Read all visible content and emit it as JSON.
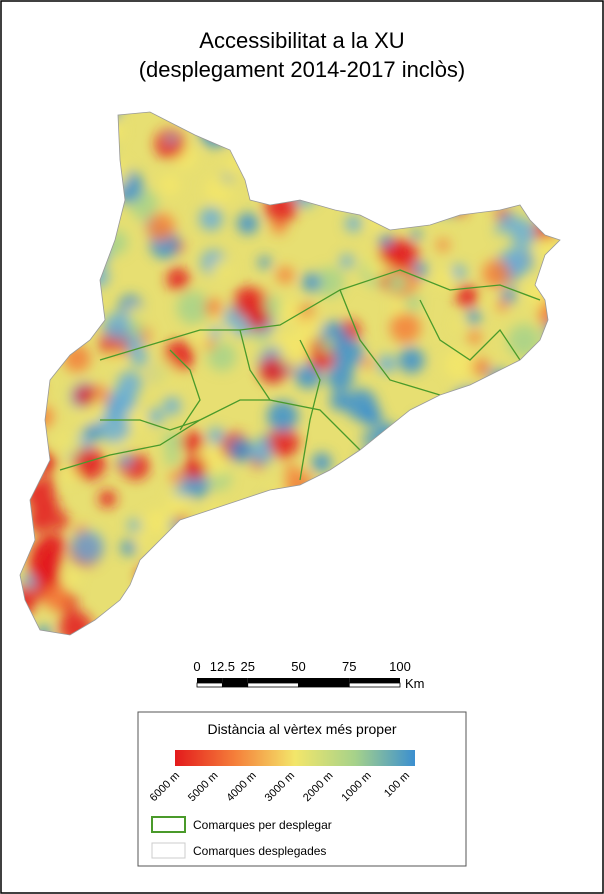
{
  "header": {
    "title_line1": "Accessibilitat a la XU",
    "title_line2": "(desplegament 2014-2017 inclòs)"
  },
  "scale_bar": {
    "ticks": [
      0,
      12.5,
      25,
      50,
      75,
      100
    ],
    "unit": "Km"
  },
  "legend": {
    "title": "Distància al vèrtex més proper",
    "gradient_labels": [
      "6000 m",
      "5000 m",
      "4000 m",
      "3000 m",
      "2000 m",
      "1000 m",
      "100 m"
    ],
    "items": [
      {
        "label": "Comarques per desplegar"
      },
      {
        "label": "Comarques desplegades"
      }
    ]
  }
}
